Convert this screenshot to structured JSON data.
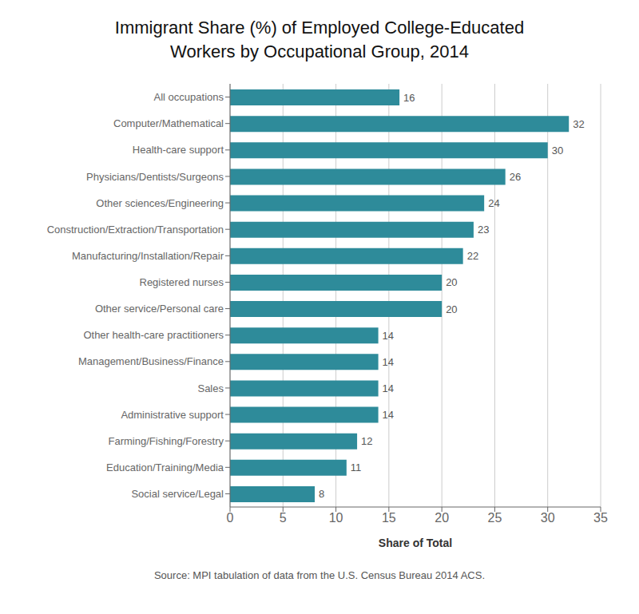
{
  "chart_data": {
    "type": "bar",
    "orientation": "horizontal",
    "title": "Immigrant Share (%) of Employed College-Educated\nWorkers by Occupational Group, 2014",
    "categories": [
      "Social service/Legal",
      "Education/Training/Media",
      "Farming/Fishing/Forestry",
      "Administrative support",
      "Sales",
      "Management/Business/Finance",
      "Other health-care practitioners",
      "Other service/Personal care",
      "Registered nurses",
      "Manufacturing/Installation/Repair",
      "Construction/Extraction/Transportation",
      "Other sciences/Engineering",
      "Physicians/Dentists/Surgeons",
      "Health-care support",
      "Computer/Mathematical",
      "All occupations"
    ],
    "values": [
      8,
      11,
      12,
      14,
      14,
      14,
      14,
      20,
      20,
      22,
      23,
      24,
      26,
      30,
      32,
      16
    ],
    "color": "#2e8b9a",
    "xlabel": "Share of Total",
    "xlim": [
      0,
      35
    ],
    "xticks": [
      0,
      5,
      10,
      15,
      20,
      25,
      30,
      35
    ],
    "grid": true,
    "data_labels": true,
    "annotation": "Source: MPI tabulation of data from the U.S. Census Bureau 2014 ACS."
  }
}
